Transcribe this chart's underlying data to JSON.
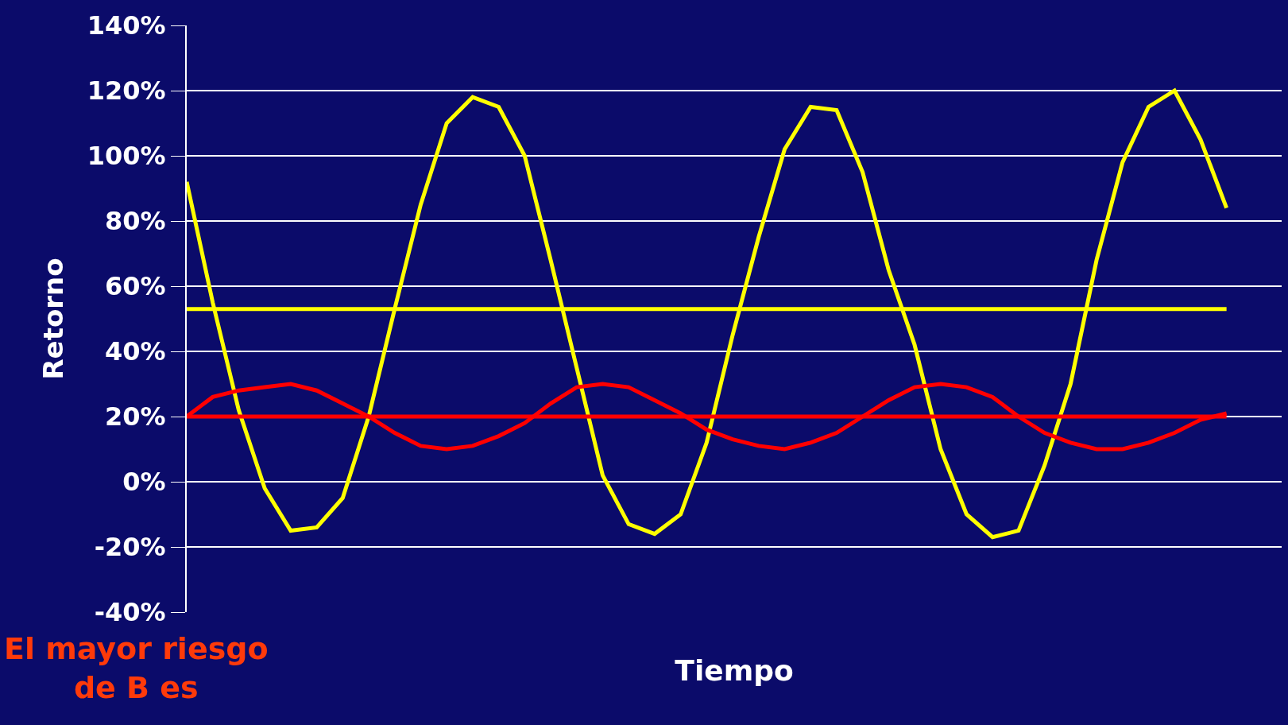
{
  "chart_data": {
    "type": "line",
    "xlabel": "Tiempo",
    "ylabel": "Retorno",
    "annotations": [
      "El mayor riesgo\nde B es"
    ],
    "categories": [
      null,
      null,
      null,
      null,
      null,
      null,
      null,
      null,
      null,
      null,
      null,
      null,
      null,
      null,
      null,
      null,
      null,
      null,
      null,
      null,
      null,
      null,
      null,
      null,
      null,
      null,
      null,
      null,
      null,
      null,
      null,
      null,
      null,
      null,
      null,
      null,
      null,
      null,
      null,
      null,
      null
    ],
    "series": [
      {
        "color": "#ffff00",
        "values": [
          92,
          55,
          22,
          -2,
          -15,
          -14,
          -5,
          20,
          53,
          85,
          110,
          118,
          115,
          100,
          68,
          35,
          2,
          -13,
          -16,
          -10,
          12,
          45,
          75,
          102,
          115,
          114,
          95,
          65,
          42,
          10,
          -10,
          -17,
          -15,
          5,
          30,
          68,
          98,
          115,
          120,
          105,
          84
        ]
      },
      {
        "color": "#ff0000",
        "values": [
          20,
          26,
          28,
          29,
          30,
          28,
          24,
          20,
          15,
          11,
          10,
          11,
          14,
          18,
          24,
          29,
          30,
          29,
          25,
          21,
          16,
          13,
          11,
          10,
          12,
          15,
          20,
          25,
          29,
          30,
          29,
          26,
          20,
          15,
          12,
          10,
          10,
          12,
          15,
          19,
          21
        ]
      }
    ],
    "ref_lines": [
      {
        "axis": "y",
        "value": 53,
        "color": "#ffff00"
      },
      {
        "axis": "y",
        "value": 20,
        "color": "#ff0000"
      }
    ],
    "ylim": [
      -40,
      140
    ],
    "yticks": [
      {
        "value": -40,
        "label": "-40%"
      },
      {
        "value": -20,
        "label": "-20%"
      },
      {
        "value": 0,
        "label": "0%"
      },
      {
        "value": 20,
        "label": "20%"
      },
      {
        "value": 40,
        "label": "40%"
      },
      {
        "value": 60,
        "label": "60%"
      },
      {
        "value": 80,
        "label": "80%"
      },
      {
        "value": 100,
        "label": "100%"
      },
      {
        "value": 120,
        "label": "120%"
      },
      {
        "value": 140,
        "label": "140%"
      }
    ],
    "grid": "y",
    "tick_labels": "y",
    "line_style": "solid"
  }
}
